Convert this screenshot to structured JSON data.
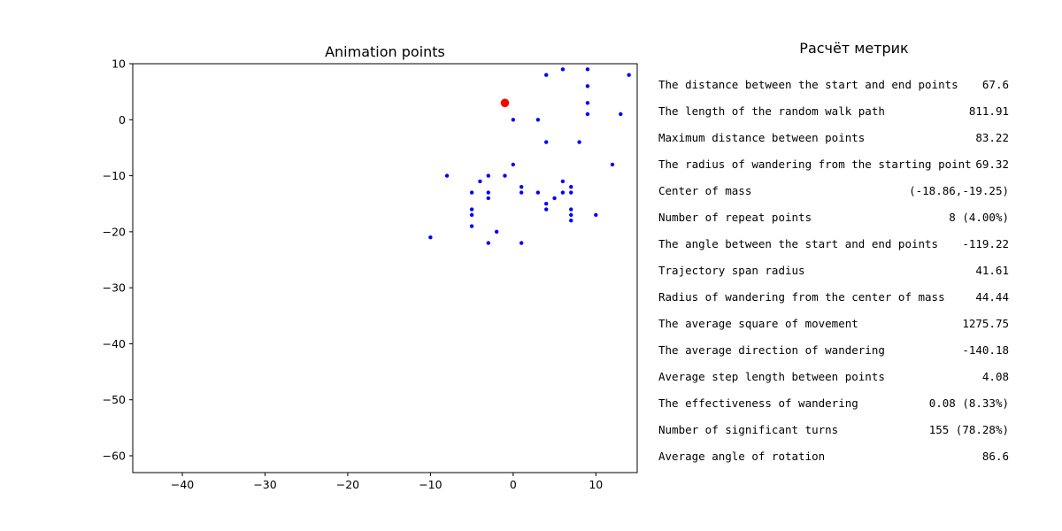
{
  "chart_data": {
    "type": "scatter",
    "title": "Animation points",
    "xlabel": "",
    "ylabel": "",
    "xlim": [
      -46,
      15
    ],
    "ylim": [
      -63,
      10
    ],
    "xticks": [
      -40,
      -30,
      -20,
      -10,
      0,
      10
    ],
    "yticks": [
      10,
      0,
      -10,
      -20,
      -30,
      -40,
      -50,
      -60
    ],
    "grid": false,
    "series": [
      {
        "color": "#0000ff",
        "marker": "small-dot",
        "points": [
          [
            4,
            8
          ],
          [
            6,
            9
          ],
          [
            9,
            9
          ],
          [
            14,
            8
          ],
          [
            9,
            6
          ],
          [
            9,
            3
          ],
          [
            9,
            1
          ],
          [
            13,
            1
          ],
          [
            0,
            0
          ],
          [
            3,
            0
          ],
          [
            4,
            -4
          ],
          [
            8,
            -4
          ],
          [
            0,
            -8
          ],
          [
            12,
            -8
          ],
          [
            -8,
            -10
          ],
          [
            -3,
            -10
          ],
          [
            -1,
            -10
          ],
          [
            -4,
            -11
          ],
          [
            6,
            -11
          ],
          [
            -5,
            -13
          ],
          [
            -3,
            -13
          ],
          [
            1,
            -12
          ],
          [
            1,
            -13
          ],
          [
            3,
            -13
          ],
          [
            6,
            -13
          ],
          [
            7,
            -12
          ],
          [
            7,
            -13
          ],
          [
            -3,
            -14
          ],
          [
            5,
            -14
          ],
          [
            4,
            -15
          ],
          [
            4,
            -16
          ],
          [
            7,
            -16
          ],
          [
            -5,
            -16
          ],
          [
            -5,
            -17
          ],
          [
            7,
            -17
          ],
          [
            10,
            -17
          ],
          [
            7,
            -18
          ],
          [
            -5,
            -19
          ],
          [
            -2,
            -20
          ],
          [
            -10,
            -21
          ],
          [
            -3,
            -22
          ],
          [
            1,
            -22
          ]
        ]
      },
      {
        "color": "#ff0000",
        "marker": "large-dot",
        "points": [
          [
            -1,
            3
          ]
        ]
      }
    ]
  },
  "metrics": {
    "title": "Расчёт метрик",
    "rows": [
      {
        "label": "The distance between the start and end points",
        "value": "67.6"
      },
      {
        "label": "The length of the random walk path",
        "value": "811.91"
      },
      {
        "label": "Maximum distance between points",
        "value": "83.22"
      },
      {
        "label": "The radius of wandering from the starting point",
        "value": "69.32"
      },
      {
        "label": "Center of mass",
        "value": "(-18.86,-19.25)"
      },
      {
        "label": "Number of repeat points",
        "value": "8 (4.00%)"
      },
      {
        "label": "The angle between the start and end points",
        "value": "-119.22"
      },
      {
        "label": "Trajectory span radius",
        "value": "41.61"
      },
      {
        "label": "Radius of wandering from the center of mass",
        "value": "44.44"
      },
      {
        "label": "The average square of movement",
        "value": "1275.75"
      },
      {
        "label": "The average direction of wandering",
        "value": "-140.18"
      },
      {
        "label": "Average step length between points",
        "value": "4.08"
      },
      {
        "label": "The effectiveness of wandering",
        "value": "0.08 (8.33%)"
      },
      {
        "label": "Number of significant turns",
        "value": "155 (78.28%)"
      },
      {
        "label": "Average angle of rotation",
        "value": "86.6"
      }
    ]
  }
}
